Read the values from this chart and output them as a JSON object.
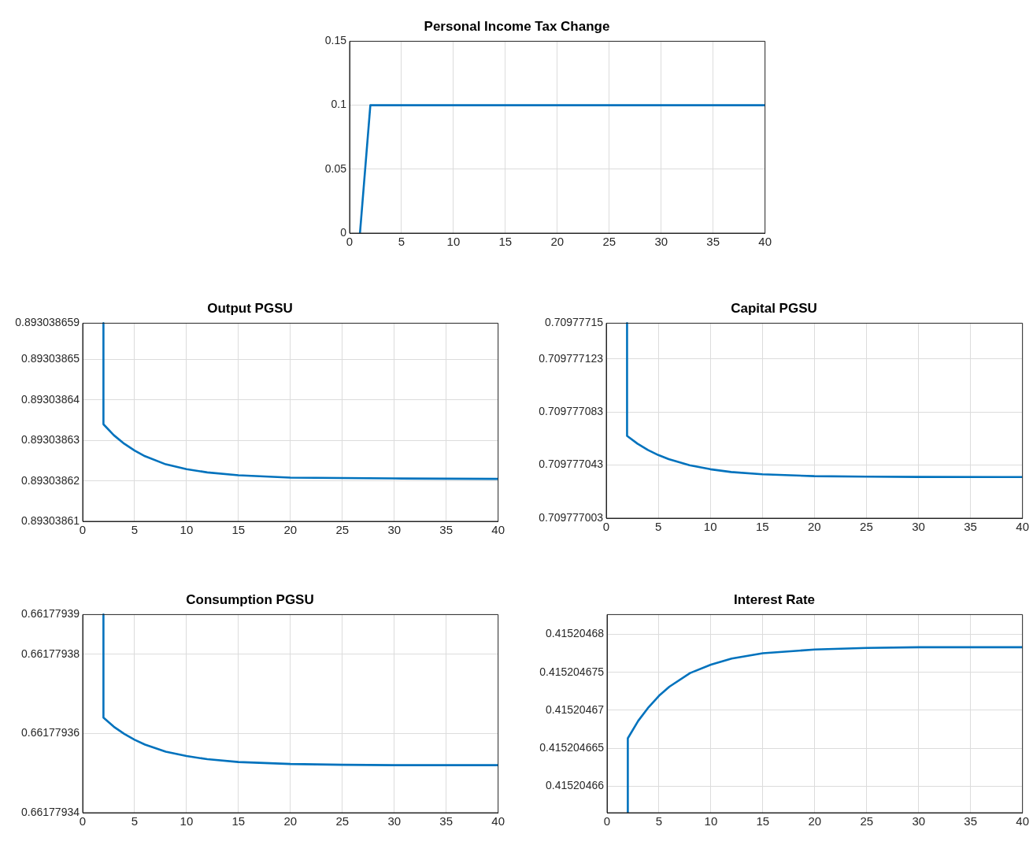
{
  "chart_data": [
    {
      "type": "line",
      "title": "Personal Income Tax Change",
      "x": [
        1,
        2,
        40
      ],
      "values": [
        0,
        0.1,
        0.1
      ],
      "color": "#0072bd",
      "xlim": [
        0,
        40
      ],
      "xticks": [
        0,
        5,
        10,
        15,
        20,
        25,
        30,
        35,
        40
      ],
      "ylim": [
        0,
        0.15
      ],
      "yticks": [
        0,
        0.05,
        0.1,
        0.15
      ],
      "grid": true
    },
    {
      "type": "line",
      "title": "Output PGSU",
      "x": [
        2,
        2,
        3,
        4,
        5,
        6,
        8,
        10,
        12,
        15,
        20,
        25,
        30,
        40
      ],
      "values": [
        0.893038659,
        0.893038634,
        0.8930386313,
        0.8930386292,
        0.8930386275,
        0.8930386261,
        0.8930386241,
        0.8930386229,
        0.8930386221,
        0.8930386214,
        0.8930386208,
        0.8930386207,
        0.8930386206,
        0.8930386205
      ],
      "color": "#0072bd",
      "xlim": [
        0,
        40
      ],
      "xticks": [
        0,
        5,
        10,
        15,
        20,
        25,
        30,
        35,
        40
      ],
      "ylim": [
        0.89303861,
        0.893038659
      ],
      "yticks": [
        0.89303861,
        0.89303862,
        0.89303863,
        0.89303864,
        0.89303865,
        0.893038659
      ],
      "grid": true
    },
    {
      "type": "line",
      "title": "Capital PGSU",
      "x": [
        2,
        2,
        3,
        4,
        5,
        6,
        8,
        10,
        12,
        15,
        20,
        25,
        30,
        40
      ],
      "values": [
        0.70977715,
        0.709777065,
        0.7097770592,
        0.7097770544,
        0.7097770506,
        0.7097770475,
        0.7097770429,
        0.7097770399,
        0.7097770378,
        0.7097770361,
        0.7097770347,
        0.7097770343,
        0.7097770341,
        0.709777034
      ],
      "color": "#0072bd",
      "xlim": [
        0,
        40
      ],
      "xticks": [
        0,
        5,
        10,
        15,
        20,
        25,
        30,
        35,
        40
      ],
      "ylim": [
        0.709777003,
        0.70977715
      ],
      "yticks": [
        0.709777003,
        0.709777043,
        0.709777083,
        0.709777123,
        0.70977715
      ],
      "grid": true
    },
    {
      "type": "line",
      "title": "Consumption PGSU",
      "x": [
        2,
        2,
        3,
        4,
        5,
        6,
        8,
        10,
        12,
        15,
        20,
        25,
        30,
        40
      ],
      "values": [
        0.66177939,
        0.661779364,
        0.6617793617,
        0.6617793599,
        0.6617793584,
        0.6617793572,
        0.6617793554,
        0.6617793543,
        0.6617793535,
        0.6617793528,
        0.6617793523,
        0.6617793521,
        0.661779352,
        0.661779352
      ],
      "color": "#0072bd",
      "xlim": [
        0,
        40
      ],
      "xticks": [
        0,
        5,
        10,
        15,
        20,
        25,
        30,
        35,
        40
      ],
      "ylim": [
        0.66177934,
        0.66177939
      ],
      "yticks": [
        0.66177934,
        0.66177936,
        0.66177938,
        0.66177939
      ],
      "grid": true
    },
    {
      "type": "line",
      "title": "Interest Rate",
      "x": [
        2,
        2,
        3,
        4,
        5,
        6,
        8,
        10,
        12,
        15,
        20,
        25,
        30,
        40
      ],
      "values": [
        0.4152046565,
        0.4152046663,
        0.4152046686,
        0.4152046704,
        0.4152046719,
        0.4152046731,
        0.4152046749,
        0.415204676,
        0.4152046768,
        0.4152046775,
        0.415204678,
        0.4152046782,
        0.4152046783,
        0.4152046783
      ],
      "color": "#0072bd",
      "xlim": [
        0,
        40
      ],
      "xticks": [
        0,
        5,
        10,
        15,
        20,
        25,
        30,
        35,
        40
      ],
      "ylim": [
        0.4152046565,
        0.4152046826
      ],
      "yticks": [
        0.41520466,
        0.415204665,
        0.41520467,
        0.415204675,
        0.41520468
      ],
      "grid": true
    }
  ]
}
